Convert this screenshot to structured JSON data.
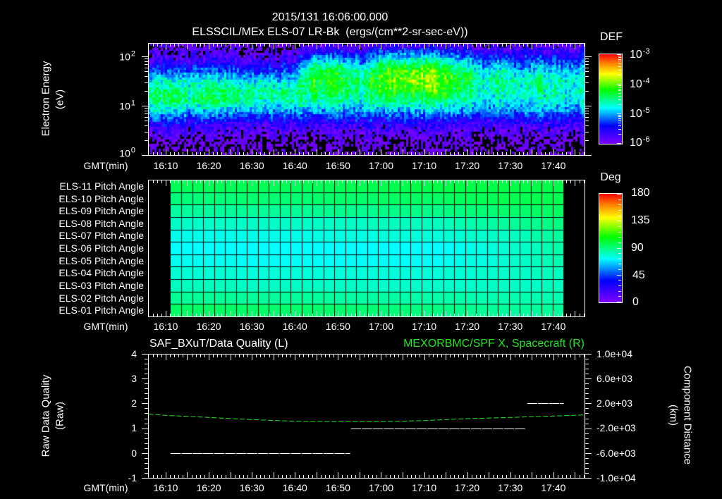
{
  "header": {
    "timestamp": "2015/131 16:06:00.000",
    "subtitle": "ELSSCIL/MEx ELS-07 LR-Bk  (ergs/(cm**2-sr-sec-eV))"
  },
  "time_axis": {
    "label": "GMT(min)",
    "start": "16:06:00",
    "end": "17:47:09",
    "ticks": [
      "16:10",
      "16:20",
      "16:30",
      "16:40",
      "16:50",
      "17:00",
      "17:10",
      "17:20",
      "17:30",
      "17:40"
    ]
  },
  "spectrogram_panel": {
    "ylabel": "Electron Energy",
    "yunits": "(eV)",
    "yticks": [
      {
        "base": "10",
        "exp": "2"
      },
      {
        "base": "10",
        "exp": "1"
      },
      {
        "base": "10",
        "exp": "0"
      }
    ],
    "colorbar": {
      "title": "DEF",
      "labels": [
        {
          "base": "10",
          "exp": "-3"
        },
        {
          "base": "10",
          "exp": "-4"
        },
        {
          "base": "10",
          "exp": "-5"
        },
        {
          "base": "10",
          "exp": "-6"
        }
      ]
    }
  },
  "pitch_panel": {
    "rows": [
      "ELS-11 Pitch Angle",
      "ELS-10 Pitch Angle",
      "ELS-09 Pitch Angle",
      "ELS-08 Pitch Angle",
      "ELS-07 Pitch Angle",
      "ELS-06 Pitch Angle",
      "ELS-05 Pitch Angle",
      "ELS-04 Pitch Angle",
      "ELS-03 Pitch Angle",
      "ELS-02 Pitch Angle",
      "ELS-01 Pitch Angle"
    ],
    "colorbar": {
      "title": "Deg",
      "labels": [
        "180",
        "135",
        "90",
        "45",
        "0"
      ]
    }
  },
  "timeseries_panel": {
    "left_title": "SAF_BXuT/Data Quality (L)",
    "right_title": "MEXORBMC/SPF X, Spacecraft (R)",
    "left_label": "Raw Data Quality",
    "left_units": "(Raw)",
    "right_label": "Component Distance",
    "right_units": "(km)",
    "left_ticks": [
      "4",
      "3",
      "2",
      "1",
      "0",
      "-1"
    ],
    "right_ticks": [
      "1.0e+04",
      "6.0e+03",
      "2.0e+03",
      "-2.0e+03",
      "-6.0e+03",
      "-1.0e+04"
    ]
  },
  "colors": {
    "background": "#000000",
    "foreground": "#ffffff",
    "right_series": "#22e822",
    "colormap": [
      [
        0,
        "#7f00ff"
      ],
      [
        0.2,
        "#0000ff"
      ],
      [
        0.4,
        "#00ffff"
      ],
      [
        0.6,
        "#00ff00"
      ],
      [
        0.78,
        "#ffff00"
      ],
      [
        0.9,
        "#ff8000"
      ],
      [
        1,
        "#ff0000"
      ]
    ]
  },
  "chart_data": [
    {
      "type": "heatmap",
      "title": "ELSSCIL/MEx ELS-07 LR-Bk (ergs/(cm**2-sr-sec-eV))",
      "xlabel": "GMT(min)",
      "ylabel": "Electron Energy (eV)",
      "yscale": "log",
      "ylim": [
        1,
        187
      ],
      "xlim": [
        "16:06:00",
        "17:47:09"
      ],
      "colorbar": {
        "label": "DEF",
        "scale": "log",
        "range": [
          1e-06,
          0.001
        ]
      },
      "x": [
        "16:08",
        "16:12",
        "16:16",
        "16:20",
        "16:24",
        "16:28",
        "16:32",
        "16:36",
        "16:40",
        "16:44",
        "16:48",
        "16:52",
        "16:56",
        "17:00",
        "17:04",
        "17:08",
        "17:12",
        "17:16",
        "17:20",
        "17:24",
        "17:28",
        "17:32",
        "17:36",
        "17:40",
        "17:44"
      ],
      "y_eV": [
        1.3,
        2.0,
        3.2,
        5.0,
        7.9,
        12.6,
        20,
        31.6,
        50,
        79,
        126,
        178
      ],
      "values_log10_DEF": [
        [
          -6.1,
          -6.0,
          -5.8,
          -5.4,
          -4.9,
          -4.5,
          -4.5,
          -4.8,
          -5.3,
          -5.7,
          -5.9,
          -6.0
        ],
        [
          -6.1,
          -6.0,
          -5.7,
          -5.3,
          -4.8,
          -4.3,
          -4.4,
          -4.7,
          -5.2,
          -5.7,
          -5.9,
          -6.0
        ],
        [
          -6.1,
          -6.0,
          -5.8,
          -5.5,
          -5.0,
          -4.6,
          -4.6,
          -4.8,
          -5.3,
          -5.7,
          -5.9,
          -6.0
        ],
        [
          -6.1,
          -6.0,
          -5.8,
          -5.4,
          -4.9,
          -4.4,
          -4.5,
          -4.7,
          -5.2,
          -5.7,
          -5.9,
          -6.0
        ],
        [
          -6.1,
          -6.0,
          -5.8,
          -5.5,
          -5.0,
          -4.5,
          -4.5,
          -4.8,
          -5.2,
          -5.7,
          -5.9,
          -6.0
        ],
        [
          -6.1,
          -6.0,
          -5.8,
          -5.5,
          -5.0,
          -4.5,
          -4.6,
          -4.8,
          -5.3,
          -5.7,
          -5.9,
          -6.0
        ],
        [
          -6.1,
          -6.0,
          -5.8,
          -5.5,
          -5.0,
          -4.6,
          -4.5,
          -4.8,
          -5.3,
          -5.7,
          -5.9,
          -6.0
        ],
        [
          -6.1,
          -6.0,
          -5.8,
          -5.5,
          -5.0,
          -4.6,
          -4.6,
          -4.9,
          -5.3,
          -5.7,
          -5.9,
          -6.0
        ],
        [
          -6.1,
          -6.0,
          -5.8,
          -5.5,
          -5.0,
          -4.5,
          -4.5,
          -4.8,
          -5.2,
          -5.6,
          -5.9,
          -6.0
        ],
        [
          -6.1,
          -6.0,
          -5.8,
          -5.5,
          -5.0,
          -4.6,
          -4.3,
          -4.2,
          -4.3,
          -4.7,
          -5.5,
          -5.9
        ],
        [
          -6.1,
          -6.0,
          -5.8,
          -5.5,
          -4.9,
          -4.5,
          -4.3,
          -4.2,
          -4.3,
          -4.8,
          -5.5,
          -5.9
        ],
        [
          -6.1,
          -6.0,
          -5.8,
          -5.5,
          -5.0,
          -4.6,
          -4.4,
          -4.3,
          -4.4,
          -4.9,
          -5.5,
          -5.9
        ],
        [
          -6.1,
          -6.0,
          -5.8,
          -5.5,
          -5.0,
          -4.7,
          -4.6,
          -4.5,
          -4.7,
          -5.2,
          -5.7,
          -5.9
        ],
        [
          -6.1,
          -6.0,
          -5.8,
          -5.5,
          -5.0,
          -4.5,
          -4.2,
          -4.1,
          -4.2,
          -4.6,
          -5.3,
          -5.8
        ],
        [
          -6.1,
          -6.0,
          -5.8,
          -5.5,
          -5.0,
          -4.5,
          -4.2,
          -4.0,
          -4.1,
          -4.6,
          -5.3,
          -5.8
        ],
        [
          -6.1,
          -6.0,
          -5.8,
          -5.5,
          -5.0,
          -4.5,
          -4.2,
          -4.0,
          -4.1,
          -4.6,
          -5.3,
          -5.8
        ],
        [
          -6.1,
          -6.0,
          -5.8,
          -5.5,
          -4.9,
          -4.4,
          -4.1,
          -3.9,
          -3.9,
          -4.5,
          -5.3,
          -5.8
        ],
        [
          -6.1,
          -6.0,
          -5.8,
          -5.5,
          -5.0,
          -4.6,
          -4.3,
          -4.2,
          -4.3,
          -4.8,
          -5.4,
          -5.8
        ],
        [
          -6.1,
          -6.0,
          -5.8,
          -5.5,
          -5.0,
          -4.6,
          -4.4,
          -4.3,
          -4.4,
          -4.9,
          -5.5,
          -5.9
        ],
        [
          -6.1,
          -6.0,
          -5.8,
          -5.5,
          -5.1,
          -4.8,
          -4.7,
          -4.6,
          -4.8,
          -5.2,
          -5.6,
          -5.9
        ],
        [
          -6.1,
          -6.0,
          -5.8,
          -5.5,
          -5.0,
          -4.7,
          -4.5,
          -4.5,
          -4.6,
          -5.0,
          -5.6,
          -5.9
        ],
        [
          -6.1,
          -6.0,
          -5.8,
          -5.6,
          -5.1,
          -4.8,
          -4.7,
          -4.7,
          -4.9,
          -5.3,
          -5.7,
          -5.9
        ],
        [
          -6.1,
          -6.0,
          -5.8,
          -5.5,
          -5.1,
          -4.8,
          -4.6,
          -4.6,
          -4.8,
          -5.2,
          -5.6,
          -5.9
        ],
        [
          -6.1,
          -6.0,
          -5.8,
          -5.5,
          -5.1,
          -4.7,
          -4.6,
          -4.7,
          -4.9,
          -5.3,
          -5.7,
          -5.9
        ],
        [
          -6.1,
          -6.0,
          -5.8,
          -5.5,
          -5.1,
          -4.8,
          -4.7,
          -4.7,
          -4.9,
          -5.3,
          -5.7,
          -5.9
        ]
      ]
    },
    {
      "type": "heatmap",
      "title": "ELS Pitch Angle",
      "xlabel": "GMT(min)",
      "x_start": "16:11:07",
      "x_end": "17:42:14",
      "columns": 36,
      "rows": [
        "ELS-11",
        "ELS-10",
        "ELS-09",
        "ELS-08",
        "ELS-07",
        "ELS-06",
        "ELS-05",
        "ELS-04",
        "ELS-03",
        "ELS-02",
        "ELS-01"
      ],
      "colorbar": {
        "label": "Deg",
        "range": [
          0,
          180
        ]
      },
      "values_deg": [
        [
          96,
          96,
          96,
          96,
          96,
          96,
          96,
          96,
          96,
          96,
          96,
          96,
          96,
          96,
          96,
          96,
          97,
          97,
          97,
          97,
          97,
          97,
          98,
          98,
          98,
          98,
          98,
          98,
          98,
          98,
          98,
          98,
          98,
          98,
          98,
          98
        ],
        [
          91,
          91,
          91,
          91,
          91,
          91,
          92,
          92,
          92,
          92,
          92,
          92,
          92,
          93,
          93,
          93,
          93,
          93,
          93,
          94,
          94,
          94,
          94,
          94,
          94,
          95,
          95,
          96,
          96,
          96,
          97,
          97,
          97,
          97,
          97,
          97
        ],
        [
          86,
          86,
          86,
          86,
          86,
          86,
          87,
          87,
          87,
          87,
          87,
          87,
          87,
          88,
          88,
          88,
          88,
          88,
          88,
          89,
          89,
          89,
          89,
          89,
          89,
          90,
          90,
          91,
          92,
          92,
          93,
          93,
          93,
          94,
          94,
          94
        ],
        [
          80,
          80,
          80,
          80,
          80,
          80,
          80,
          80,
          80,
          80,
          80,
          80,
          80,
          80,
          80,
          80,
          80,
          80,
          81,
          81,
          81,
          81,
          81,
          81,
          81,
          82,
          83,
          84,
          85,
          85,
          86,
          87,
          88,
          88,
          89,
          90
        ],
        [
          75,
          75,
          75,
          75,
          75,
          75,
          75,
          75,
          75,
          75,
          75,
          75,
          75,
          76,
          76,
          76,
          76,
          76,
          76,
          77,
          77,
          77,
          77,
          77,
          77,
          78,
          78,
          79,
          79,
          80,
          80,
          81,
          82,
          84,
          85,
          86
        ],
        [
          72,
          72,
          72,
          72,
          72,
          72,
          72,
          72,
          72,
          72,
          72,
          72,
          72,
          72,
          72,
          72,
          72,
          72,
          72,
          72,
          72,
          72,
          72,
          72,
          72,
          73,
          74,
          75,
          76,
          77,
          78,
          79,
          80,
          81,
          83,
          84
        ],
        [
          74,
          74,
          74,
          74,
          74,
          74,
          73,
          73,
          73,
          73,
          73,
          73,
          73,
          73,
          73,
          73,
          73,
          73,
          73,
          73,
          73,
          73,
          73,
          73,
          73,
          74,
          75,
          76,
          76,
          77,
          78,
          79,
          80,
          81,
          82,
          83
        ],
        [
          78,
          78,
          78,
          78,
          78,
          78,
          77,
          77,
          77,
          77,
          77,
          77,
          77,
          77,
          77,
          77,
          77,
          77,
          77,
          77,
          77,
          77,
          77,
          77,
          77,
          78,
          78,
          78,
          79,
          79,
          79,
          80,
          80,
          81,
          81,
          81
        ],
        [
          81,
          81,
          81,
          81,
          81,
          81,
          80,
          80,
          80,
          80,
          80,
          80,
          80,
          80,
          80,
          80,
          80,
          80,
          79,
          79,
          79,
          79,
          79,
          79,
          79,
          79,
          79,
          79,
          80,
          80,
          80,
          80,
          80,
          80,
          81,
          81
        ],
        [
          87,
          87,
          87,
          87,
          87,
          87,
          86,
          86,
          86,
          86,
          86,
          86,
          86,
          86,
          86,
          85,
          85,
          85,
          85,
          85,
          85,
          84,
          84,
          84,
          84,
          84,
          84,
          83,
          83,
          83,
          83,
          83,
          83,
          83,
          83,
          83
        ],
        [
          94,
          94,
          94,
          94,
          94,
          94,
          93,
          93,
          93,
          93,
          93,
          93,
          93,
          93,
          93,
          92,
          92,
          92,
          92,
          91,
          91,
          91,
          90,
          90,
          90,
          89,
          88,
          88,
          87,
          87,
          86,
          86,
          86,
          86,
          86,
          86
        ]
      ]
    },
    {
      "type": "line",
      "title": "SAF_BXuT/Data Quality (L) / MEXORBMC/SPF X, Spacecraft (R)",
      "xlabel": "GMT(min)",
      "ylabel_left": "Raw Data Quality (Raw)",
      "ylabel_right": "Component Distance (km)",
      "ylim_left": [
        -1,
        4
      ],
      "ylim_right": [
        -10000,
        10000
      ],
      "series": [
        {
          "name": "SAF_BXuT/Data Quality",
          "axis": "left",
          "segments": [
            {
              "start": "16:11:07",
              "end": "16:52:50",
              "value": 0
            },
            {
              "start": "16:53:00",
              "end": "17:33:34",
              "value": 1
            },
            {
              "start": "17:33:53",
              "end": "17:42:24",
              "value": 2
            }
          ]
        },
        {
          "name": "MEXORBMC/SPF X, Spacecraft",
          "axis": "right",
          "points": [
            [
              "16:06:00",
              310
            ],
            [
              "16:10:00",
              80
            ],
            [
              "16:20:00",
              -260
            ],
            [
              "16:30:00",
              -600
            ],
            [
              "16:40:00",
              -880
            ],
            [
              "16:50:00",
              -940
            ],
            [
              "17:00:00",
              -940
            ],
            [
              "17:10:00",
              -760
            ],
            [
              "17:20:00",
              -450
            ],
            [
              "17:30:00",
              -260
            ],
            [
              "17:40:00",
              -30
            ],
            [
              "17:47:00",
              150
            ]
          ]
        }
      ]
    }
  ]
}
